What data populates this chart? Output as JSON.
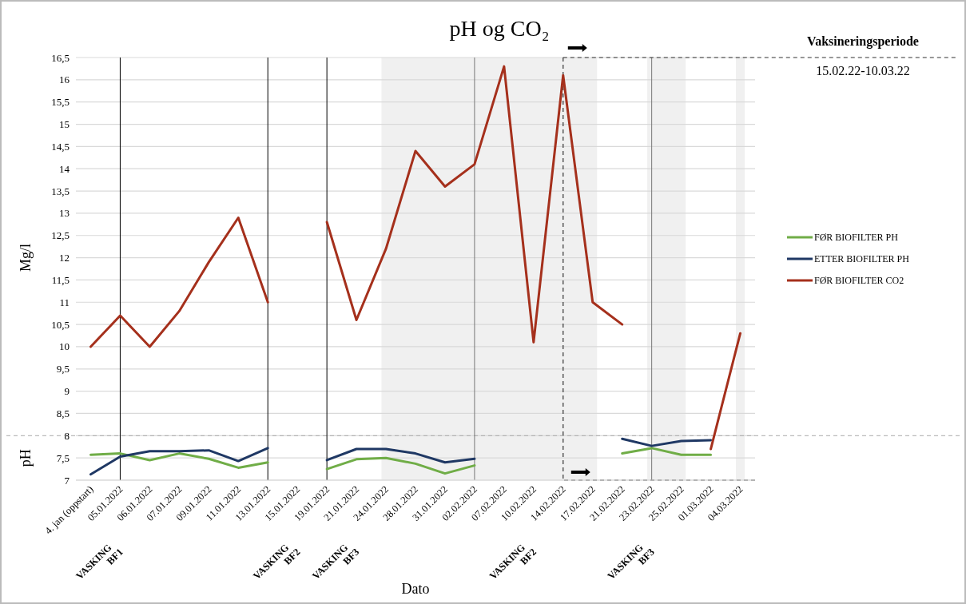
{
  "chart_data": {
    "type": "line",
    "title": "pH og CO₂",
    "xlabel": "Dato",
    "ylabel": "Mg/l",
    "categories": [
      "4. jan (oppstart)",
      "05.01.2022",
      "06.01.2022",
      "07.01.2022",
      "09.01.2022",
      "11.01.2022",
      "13.01.2022",
      "15.01.2022",
      "19.01.2022",
      "21.01.2022",
      "24.01.2022",
      "28.01.2022",
      "31.01.2022",
      "02.02.2022",
      "07.02.2022",
      "10.02.2022",
      "14.02.2022",
      "17.02.2022",
      "21.02.2022",
      "23.02.2022",
      "25.02.2022",
      "01.03.2022",
      "04.03.2022"
    ],
    "series": [
      {
        "name": "FØR BIOFILTER PH",
        "color": "#70ad47",
        "values": [
          7.57,
          7.6,
          7.45,
          7.6,
          7.48,
          7.28,
          7.4,
          null,
          7.25,
          7.47,
          7.5,
          7.37,
          7.15,
          7.33,
          null,
          null,
          null,
          null,
          7.6,
          7.72,
          7.57,
          7.57,
          null
        ]
      },
      {
        "name": "ETTER BIOFILTER PH",
        "color": "#1f3864",
        "values": [
          7.13,
          7.53,
          7.65,
          7.65,
          7.67,
          7.43,
          7.72,
          null,
          7.45,
          7.7,
          7.7,
          7.6,
          7.4,
          7.48,
          null,
          null,
          null,
          null,
          7.93,
          7.77,
          7.88,
          7.9,
          null
        ]
      },
      {
        "name": "FØR BIOFILTER CO2",
        "color": "#a5301c",
        "values": [
          10,
          10.7,
          10,
          10.8,
          11.9,
          12.9,
          11,
          null,
          12.8,
          10.6,
          12.2,
          14.4,
          13.6,
          14.1,
          16.3,
          10.1,
          16.1,
          11,
          10.5,
          null,
          null,
          7.7,
          10.3
        ]
      }
    ],
    "ylim": [
      7,
      16.5
    ],
    "yticks": [
      7,
      {
        "value": 7.5,
        "label": "7,5"
      },
      8,
      {
        "value": 8.5,
        "label": "8,5"
      },
      9,
      {
        "value": 9.5,
        "label": "9,5"
      },
      10,
      {
        "value": 10.5,
        "label": "10,5"
      },
      11,
      {
        "value": 11.5,
        "label": "11,5"
      },
      12,
      {
        "value": 12.5,
        "label": "12,5"
      },
      13,
      {
        "value": 13.5,
        "label": "13,5"
      },
      14,
      {
        "value": 14.5,
        "label": "14,5"
      },
      15,
      {
        "value": 15.5,
        "label": "15,5"
      },
      16,
      {
        "value": 16.5,
        "label": "16,5"
      }
    ],
    "grid": "y",
    "legend": "right",
    "line_style": "solid",
    "marker": "none",
    "ref_lines": [
      {
        "axis": "y",
        "value": 8,
        "color": "#aaaaaa",
        "line_style": "dashed"
      },
      {
        "axis": "x",
        "value": "05.01.2022",
        "color": "#000000",
        "line_style": "solid"
      },
      {
        "axis": "x",
        "value": "13.01.2022",
        "color": "#000000",
        "line_style": "solid"
      },
      {
        "axis": "x",
        "value": "19.01.2022",
        "color": "#000000",
        "line_style": "solid"
      },
      {
        "axis": "x",
        "value": "02.02.2022",
        "color": "#777777",
        "line_style": "solid"
      },
      {
        "axis": "x",
        "value": "23.02.2022",
        "color": "#777777",
        "line_style": "solid"
      },
      {
        "axis": "x",
        "value": "14.02.2022",
        "color": "#333333",
        "line_style": "dashed"
      }
    ],
    "bands": [
      {
        "axis": "x",
        "from": "24.01.2022",
        "to": "17.02.2022",
        "color": "#f0f0f0"
      },
      {
        "axis": "x",
        "from": "23.02.2022",
        "to": "25.02.2022",
        "color": "#f0f0f0"
      },
      {
        "axis": "x",
        "from": "04.03.2022",
        "to": "04.03.2022",
        "color": "#f0f0f0"
      }
    ],
    "annotations": [
      "pH",
      "Vaksineringsperiode",
      "15.02.22-10.03.22",
      "VASKING BF1",
      "VASKING BF2",
      "VASKING BF3",
      "VASKING BF2",
      "VASKING BF3"
    ]
  }
}
